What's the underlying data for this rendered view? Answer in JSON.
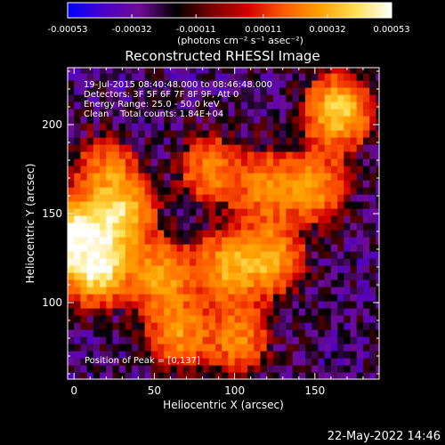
{
  "colorbar": {
    "ticks": [
      "-0.00053",
      "-0.00032",
      "-0.00011",
      "0.00011",
      "0.00032",
      "0.00053"
    ],
    "tick_values": [
      -0.00053,
      -0.00032,
      -0.00011,
      0.00011,
      0.00032,
      0.00053
    ],
    "unit_label": "(photons cm⁻² s⁻¹ asec⁻²)",
    "range": [
      -0.00053,
      0.00053
    ],
    "colormap": [
      "#0000ff",
      "#4a00c8",
      "#6e0c96",
      "#000000",
      "#7a0000",
      "#d20000",
      "#ff5a00",
      "#ffa000",
      "#ffe050",
      "#ffffff"
    ]
  },
  "chart_data": {
    "type": "heatmap",
    "title": "Reconstructed RHESSI Image",
    "xlabel": "Heliocentric X (arcsec)",
    "ylabel": "Heliocentric Y (arcsec)",
    "xlim": [
      -4,
      190
    ],
    "ylim": [
      57,
      232
    ],
    "xticks": [
      0,
      50,
      100,
      150
    ],
    "yticks": [
      100,
      150,
      200
    ],
    "grid": false,
    "annotations": [
      "19-Jul-2015 08:40:48.000 to 08:46:48.000",
      "Detectors: 3F 5F 6F 7F 8F 9F, Att 0",
      "Energy Range: 25.0 - 50.0 keV",
      "Clean    Total counts: 1.84E+04"
    ],
    "peak_label": "Position of Peak = [0,137]",
    "peak_position": [
      0,
      137
    ],
    "bright_regions": [
      {
        "x": 0,
        "y": 137,
        "relative_intensity": 1.0
      },
      {
        "x": 15,
        "y": 120,
        "relative_intensity": 0.85
      },
      {
        "x": 30,
        "y": 150,
        "relative_intensity": 0.7
      },
      {
        "x": 165,
        "y": 208,
        "relative_intensity": 0.75
      },
      {
        "x": 55,
        "y": 115,
        "relative_intensity": 0.55
      },
      {
        "x": 95,
        "y": 120,
        "relative_intensity": 0.55
      },
      {
        "x": 122,
        "y": 125,
        "relative_intensity": 0.6
      },
      {
        "x": 150,
        "y": 165,
        "relative_intensity": 0.5
      },
      {
        "x": 120,
        "y": 165,
        "relative_intensity": 0.45
      },
      {
        "x": 85,
        "y": 175,
        "relative_intensity": 0.45
      },
      {
        "x": 20,
        "y": 175,
        "relative_intensity": 0.4
      },
      {
        "x": 65,
        "y": 82,
        "relative_intensity": 0.5
      },
      {
        "x": 102,
        "y": 80,
        "relative_intensity": 0.45
      }
    ]
  },
  "footer": {
    "timestamp": "22-May-2022 14:46"
  }
}
